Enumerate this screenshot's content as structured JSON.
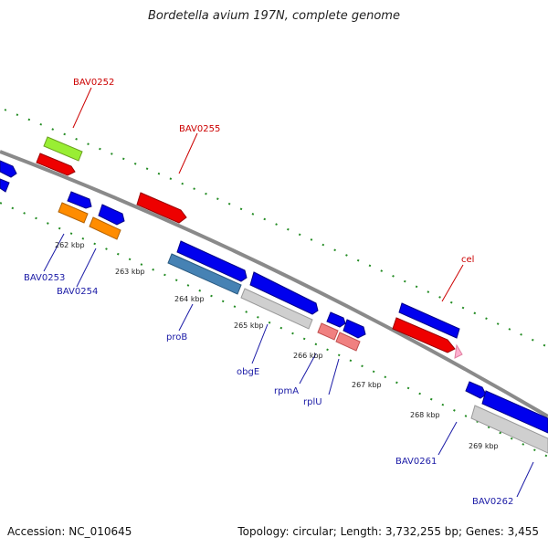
{
  "title": "Bordetella avium 197N, complete genome",
  "accession": "Accession: NC_010645",
  "info": "Topology: circular; Length: 3,732,255 bp; Genes: 3,455",
  "ticks": [
    "262 kbp",
    "263 kbp",
    "264 kbp",
    "265 kbp",
    "266 kbp",
    "267 kbp",
    "268 kbp",
    "269 kbp"
  ],
  "labels": {
    "BAV0252": "BAV0252",
    "BAV0255": "BAV0255",
    "cel": "cel",
    "BAV0253": "BAV0253",
    "BAV0254": "BAV0254",
    "proB": "proB",
    "obgE": "obgE",
    "rpmA": "rpmA",
    "rplU": "rplU",
    "BAV0261": "BAV0261",
    "BAV0262": "BAV0262"
  },
  "colors": {
    "forward_cds": "#ff0000",
    "reverse_cds": "#0000ff",
    "orange": "#ff8c00",
    "lightgreen": "#99ee33",
    "steelblue": "#4682b4",
    "gray": "#c8c8c8",
    "pink": "#f08080"
  }
}
